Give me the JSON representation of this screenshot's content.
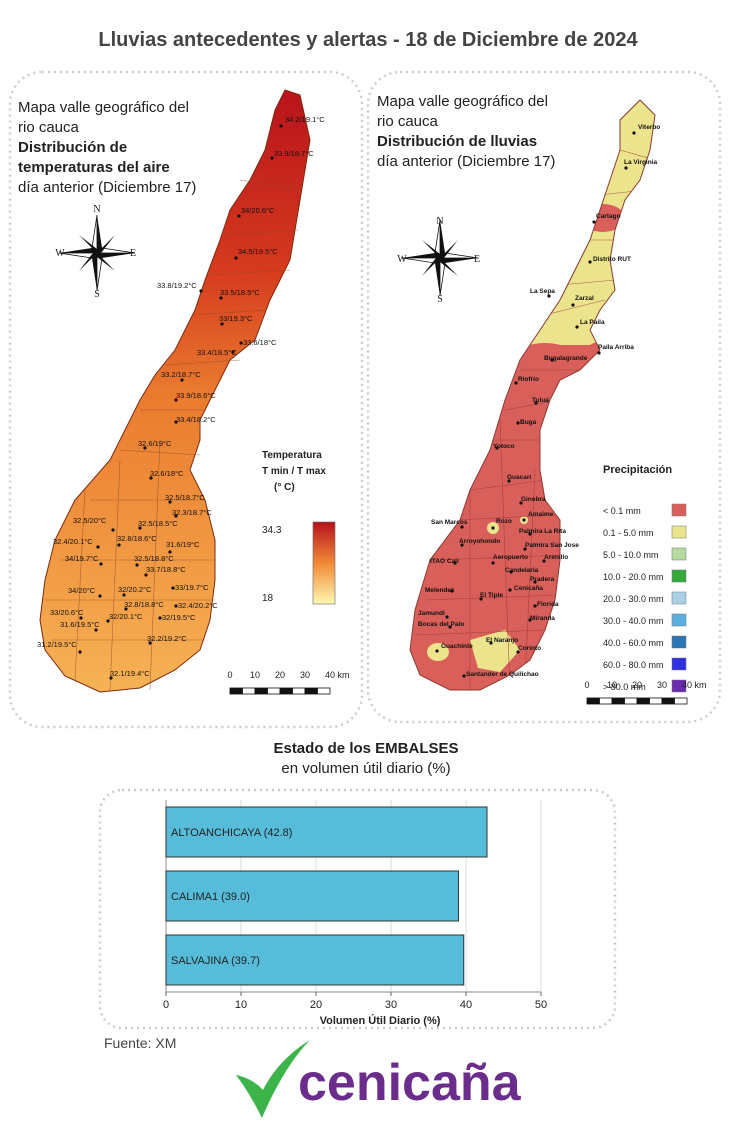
{
  "title": "Lluvias antecedentes y alertas - 18 de Diciembre de 2024",
  "temperature_map": {
    "title_lines": [
      "Mapa valle geográfico del",
      "rio cauca"
    ],
    "subtitle_lines": [
      "Distribución de",
      "temperaturas del aire"
    ],
    "period": "día anterior (Diciembre 17)",
    "compass": {
      "n": "N",
      "s": "S",
      "e": "E",
      "w": "W"
    },
    "stations": [
      "34.2/19.1°C",
      "33.9/18.7°C",
      "34/20.6°C",
      "34.5/19.5°C",
      "33.8/19.2°C",
      "33.5/18.5°C",
      "33/19.3°C",
      "33.6/18°C",
      "33.4/18.5°C",
      "33.2/18.7°C",
      "33.9/18.6°C",
      "33.4/18.2°C",
      "32.6/19°C",
      "32.6/18°C",
      "32.5/18.7°C",
      "32.3/18.7°C",
      "32.5/20°C",
      "32.5/18.5°C",
      "32.4/20.1°C",
      "32.8/18.6°C",
      "31.6/19°C",
      "34/19.7°C",
      "32.5/18.8°C",
      "33.7/18.8°C",
      "34/20°C",
      "32/20.2°C",
      "33/19.7°C",
      "32.8/18.8°C",
      "32.4/20.2°C",
      "33/20.6°C",
      "32/20.1°C",
      "32/19.5°C",
      "31.6/19.5°C",
      "32.2/19.2°C",
      "31.2/19.5°C",
      "32.1/19.4°C"
    ],
    "legend": {
      "title": "Temperatura",
      "subtitle": "T min / T max",
      "unit": "(° C)",
      "scale_max": 34.3,
      "scale_min": 18,
      "color_max": "#b5121b",
      "color_min": "#fff8b0"
    },
    "scale_labels": [
      "0",
      "10",
      "20",
      "30",
      "40 km"
    ]
  },
  "rain_map": {
    "title_lines": [
      "Mapa valle geográfico del",
      "rio cauca"
    ],
    "subtitle": "Distribución de lluvias",
    "period": "día anterior (Diciembre 17)",
    "compass": {
      "n": "N",
      "s": "S",
      "e": "E",
      "w": "W"
    },
    "stations": [
      "Viterbo",
      "La Virginia",
      "Cartago",
      "Distrito RUT",
      "La Sepa",
      "Zarzal",
      "La Paila",
      "Paila Arriba",
      "Bugalagrande",
      "Riofrio",
      "Tuluá",
      "Buga",
      "Yotoco",
      "Guacarí",
      "Ginebra",
      "Amaime",
      "Rozo",
      "San Marcos",
      "Palmira La Rita",
      "Arroyohondo",
      "Palmira San Jose",
      "Aeropuerto",
      "Arenillo",
      "ITAO Cali",
      "Candelaria",
      "Pradera",
      "Melendez",
      "El Tiple",
      "Cenicaña",
      "Florida",
      "Jamundí",
      "Bocas del Palo",
      "Miranda",
      "El Naranjo",
      "Corinto",
      "Guachinte",
      "Santander de Quilichao"
    ],
    "legend": {
      "title": "Precipitación",
      "items": [
        {
          "label": "< 0.1 mm",
          "color": "#d95f5a"
        },
        {
          "label": "0.1 - 5.0 mm",
          "color": "#ece48c"
        },
        {
          "label": "5.0 - 10.0 mm",
          "color": "#b4dca0"
        },
        {
          "label": "10.0 - 20.0 mm",
          "color": "#35a93b"
        },
        {
          "label": "20.0 - 30.0 mm",
          "color": "#a9d0e4"
        },
        {
          "label": "30.0 - 40.0 mm",
          "color": "#5aaee0"
        },
        {
          "label": "40.0 - 60.0 mm",
          "color": "#2b75b5"
        },
        {
          "label": "60.0 - 80.0 mm",
          "color": "#3030e0"
        },
        {
          "label": "> 80.0 mm",
          "color": "#6a2bb0"
        }
      ]
    },
    "scale_labels": [
      "0",
      "10",
      "20",
      "30",
      "40 km"
    ]
  },
  "chart_data": {
    "type": "bar",
    "orientation": "horizontal",
    "title": "Estado de los EMBALSES",
    "subtitle": "en volumen útil diario (%)",
    "values": [
      42.8,
      39.0,
      39.7
    ],
    "value_labels": [
      "ALTOANCHICAYA (42.8)",
      "CALIMA1 (39.0)",
      "SALVAJINA (39.7)"
    ],
    "color": "#56bcd9",
    "xlim": [
      0,
      50
    ],
    "xticks": [
      0,
      10,
      20,
      30,
      40,
      50
    ],
    "xlabel": "Volumen Útil Diario (%)",
    "grid": true
  },
  "source": "Fuente: XM",
  "logo": "cenicaña"
}
